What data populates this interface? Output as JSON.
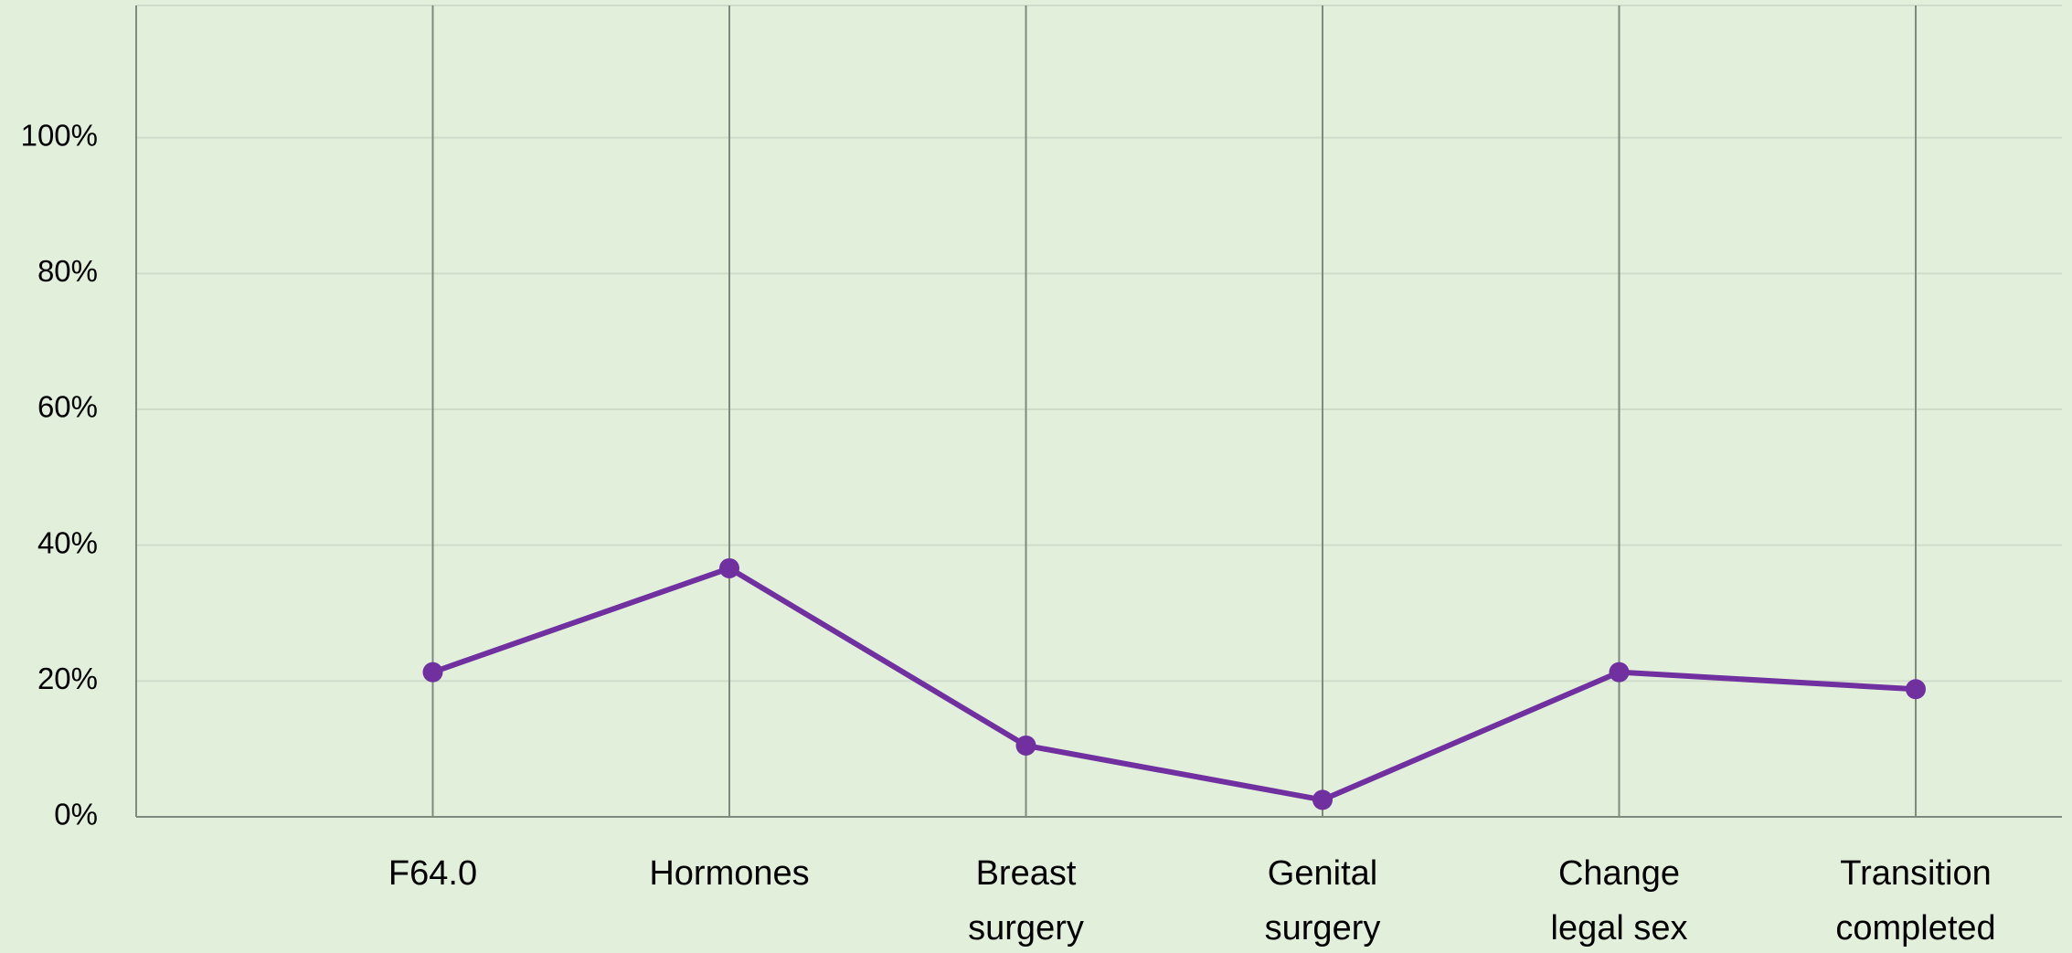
{
  "chart_data": {
    "type": "line",
    "categories": [
      null,
      "F64.0",
      "Hormones",
      "Breast surgery",
      "Genital surgery",
      "Change legal sex",
      "Transition completed"
    ],
    "series": [
      {
        "name": null,
        "color": "#7030a0",
        "values": [
          null,
          21.3,
          36.6,
          10.5,
          2.5,
          21.3,
          18.8
        ]
      }
    ],
    "ylim": [
      0,
      120
    ],
    "yticks": [
      {
        "value": 0,
        "label": "0%"
      },
      {
        "value": 20,
        "label": "20%"
      },
      {
        "value": 40,
        "label": "40%"
      },
      {
        "value": 60,
        "label": "60%"
      },
      {
        "value": 80,
        "label": "80%"
      },
      {
        "value": 100,
        "label": "100%"
      }
    ],
    "grid": true
  }
}
